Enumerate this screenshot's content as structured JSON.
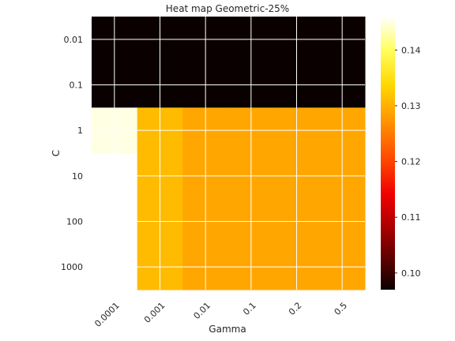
{
  "chart_data": {
    "type": "heatmap",
    "title": "Heat map Geometric-25%",
    "xlabel": "Gamma",
    "ylabel": "C",
    "x_categories": [
      "0.0001",
      "0.001",
      "0.01",
      "0.1",
      "0.2",
      "0.5"
    ],
    "y_categories": [
      "0.01",
      "0.1",
      "1",
      "10",
      "100",
      "1000"
    ],
    "values": [
      [
        0.097,
        0.097,
        0.097,
        0.097,
        0.097,
        0.097
      ],
      [
        0.097,
        0.097,
        0.097,
        0.097,
        0.097,
        0.097
      ],
      [
        0.145,
        0.131,
        0.129,
        0.129,
        0.129,
        0.129
      ],
      [
        null,
        0.131,
        0.129,
        0.129,
        0.129,
        0.129
      ],
      [
        null,
        0.131,
        0.129,
        0.129,
        0.129,
        0.129
      ],
      [
        null,
        0.131,
        0.129,
        0.129,
        0.129,
        0.129
      ]
    ],
    "colormap": "hot",
    "colorbar": {
      "range": [
        0.097,
        0.146
      ],
      "ticks": [
        "0.10",
        "0.11",
        "0.12",
        "0.13",
        "0.14"
      ]
    },
    "grid": true,
    "grid_color": "#ffffff"
  }
}
